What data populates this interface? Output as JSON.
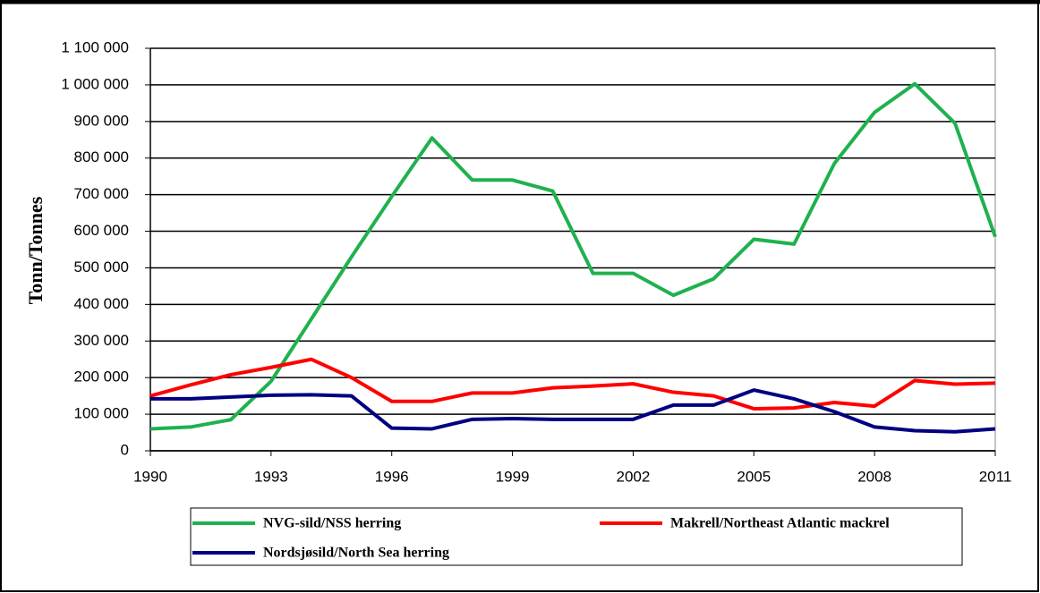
{
  "chart_data": {
    "type": "line",
    "y_label": "Tonn/Tonnes",
    "x": [
      1990,
      1991,
      1992,
      1993,
      1994,
      1995,
      1996,
      1997,
      1998,
      1999,
      2000,
      2001,
      2002,
      2003,
      2004,
      2005,
      2006,
      2007,
      2008,
      2009,
      2010,
      2011
    ],
    "xlim": [
      1990,
      2011
    ],
    "xticks": [
      1990,
      1993,
      1996,
      1999,
      2002,
      2005,
      2008,
      2011
    ],
    "ylim": [
      0,
      1100000
    ],
    "yticks": [
      0,
      {
        "value": 100000,
        "label": "100 000"
      },
      {
        "value": 200000,
        "label": "200 000"
      },
      {
        "value": 300000,
        "label": "300 000"
      },
      {
        "value": 400000,
        "label": "400 000"
      },
      {
        "value": 500000,
        "label": "500 000"
      },
      {
        "value": 600000,
        "label": "600 000"
      },
      {
        "value": 700000,
        "label": "700 000"
      },
      {
        "value": 800000,
        "label": "800 000"
      },
      {
        "value": 900000,
        "label": "900 000"
      },
      {
        "value": 1000000,
        "label": "1 000 000"
      },
      {
        "value": 1100000,
        "label": "1 100 000"
      }
    ],
    "grid": true,
    "legend": "bottom",
    "series": [
      {
        "name": "NVG-sild/NSS herring",
        "color": "#1fb14e",
        "values": [
          60000,
          65000,
          85000,
          190000,
          360000,
          530000,
          695000,
          855000,
          740000,
          740000,
          710000,
          485000,
          485000,
          425000,
          470000,
          578000,
          565000,
          785000,
          925000,
          1003000,
          895000,
          585000
        ]
      },
      {
        "name": "Makrell/Northeast Atlantic mackrel",
        "color": "#ff0000",
        "values": [
          150000,
          180000,
          208000,
          228000,
          250000,
          200000,
          135000,
          135000,
          158000,
          158000,
          172000,
          177000,
          183000,
          160000,
          150000,
          115000,
          117000,
          132000,
          122000,
          192000,
          182000,
          185000
        ]
      },
      {
        "name": "Nordsjøsild/North Sea herring",
        "color": "#000080",
        "values": [
          142000,
          142000,
          147000,
          152000,
          153000,
          150000,
          62000,
          60000,
          86000,
          88000,
          86000,
          86000,
          86000,
          125000,
          125000,
          166000,
          142000,
          107000,
          65000,
          55000,
          52000,
          60000
        ]
      }
    ]
  }
}
